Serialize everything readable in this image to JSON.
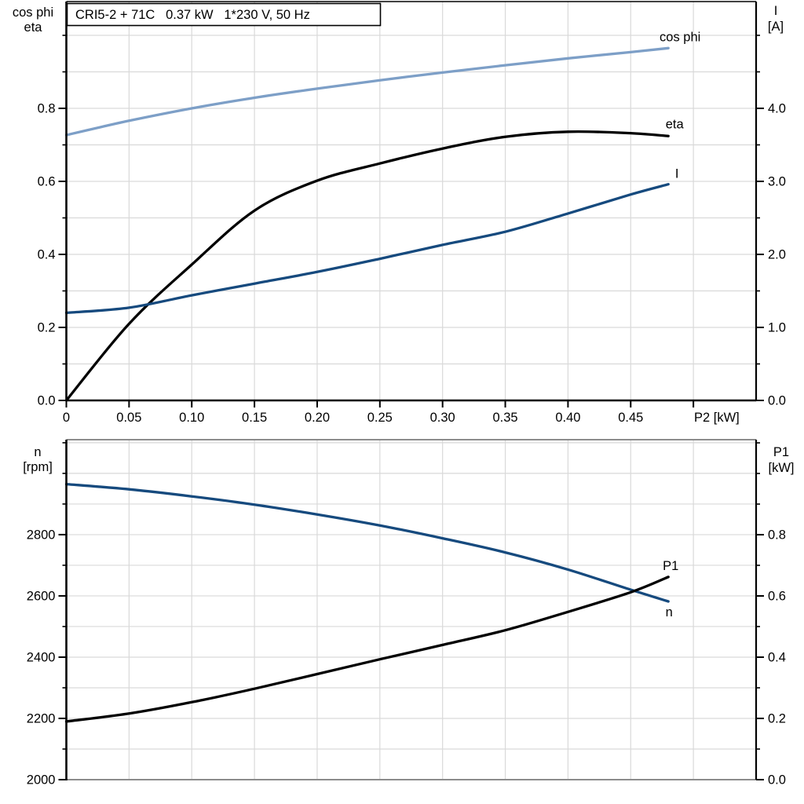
{
  "chart_data": [
    {
      "type": "line",
      "title": "CRI5-2 + 71C   0.37 kW   1*230 V, 50 Hz",
      "x_axis": {
        "label": "P2 [kW]",
        "range": [
          0,
          0.55
        ],
        "grid_step": 0.05,
        "ticks": [
          0,
          0.05,
          0.1,
          0.15,
          0.2,
          0.25,
          0.3,
          0.35,
          0.4,
          0.45,
          0.5
        ],
        "tick_labels": [
          "0",
          "0.05",
          "0.10",
          "0.15",
          "0.20",
          "0.25",
          "0.30",
          "0.35",
          "0.40",
          "0.45",
          ""
        ]
      },
      "y_left": {
        "label_lines": [
          "cos phi",
          "eta"
        ],
        "range": [
          0,
          1.0925
        ],
        "grid_step": 0.1,
        "minor_step": 0.1,
        "ticks": [
          0,
          0.2,
          0.4,
          0.6,
          0.8
        ],
        "tick_labels": [
          "0.0",
          "0.2",
          "0.4",
          "0.6",
          "0.8"
        ]
      },
      "y_right": {
        "label_lines": [
          "I",
          "[A]"
        ],
        "range": [
          0,
          5.4624
        ],
        "minor_step": 0.5,
        "ticks": [
          0,
          1,
          2,
          3,
          4
        ],
        "tick_labels": [
          "0.0",
          "1.0",
          "2.0",
          "3.0",
          "4.0"
        ]
      },
      "series": [
        {
          "name": "cos phi",
          "axis": "left",
          "color": "#7d9fc7",
          "x": [
            0,
            0.05,
            0.1,
            0.15,
            0.2,
            0.25,
            0.3,
            0.35,
            0.4,
            0.45,
            0.48
          ],
          "y": [
            0.727,
            0.766,
            0.8,
            0.829,
            0.854,
            0.877,
            0.898,
            0.918,
            0.937,
            0.954,
            0.965
          ],
          "label_offset": [
            15,
            -14
          ]
        },
        {
          "name": "eta",
          "axis": "left",
          "color": "#000000",
          "x": [
            0,
            0.05,
            0.1,
            0.15,
            0.2,
            0.25,
            0.3,
            0.35,
            0.4,
            0.45,
            0.48
          ],
          "y": [
            0.0,
            0.21,
            0.372,
            0.52,
            0.602,
            0.649,
            0.69,
            0.722,
            0.736,
            0.732,
            0.724
          ],
          "label_offset": [
            8,
            -15
          ]
        },
        {
          "name": "I",
          "axis": "right",
          "color": "#164a7e",
          "x": [
            0,
            0.05,
            0.1,
            0.15,
            0.2,
            0.25,
            0.3,
            0.35,
            0.4,
            0.45,
            0.48
          ],
          "y": [
            1.2,
            1.27,
            1.44,
            1.6,
            1.76,
            1.94,
            2.13,
            2.31,
            2.56,
            2.82,
            2.96
          ],
          "label_offset": [
            11,
            -13
          ]
        }
      ]
    },
    {
      "type": "line",
      "title": "",
      "x_axis": {
        "label": "",
        "range": [
          0,
          0.55
        ],
        "grid_step": 0.05,
        "ticks": [],
        "tick_labels": []
      },
      "y_left": {
        "label_lines": [
          "n",
          "[rpm]"
        ],
        "range": [
          2000,
          3110
        ],
        "grid_step": 100,
        "minor_step": 100,
        "ticks": [
          2000,
          2200,
          2400,
          2600,
          2800
        ],
        "tick_labels": [
          "2000",
          "2200",
          "2400",
          "2600",
          "2800"
        ]
      },
      "y_right": {
        "label_lines": [
          "P1",
          "[kW]"
        ],
        "range": [
          0,
          1.1103
        ],
        "minor_step": 0.1,
        "ticks": [
          0,
          0.2,
          0.4,
          0.6,
          0.8
        ],
        "tick_labels": [
          "0.0",
          "0.2",
          "0.4",
          "0.6",
          "0.8"
        ]
      },
      "series": [
        {
          "name": "n",
          "axis": "left",
          "color": "#164a7e",
          "x": [
            0,
            0.05,
            0.1,
            0.15,
            0.2,
            0.25,
            0.3,
            0.35,
            0.4,
            0.45,
            0.48
          ],
          "y": [
            2965,
            2948,
            2925,
            2898,
            2866,
            2830,
            2788,
            2742,
            2686,
            2620,
            2582
          ],
          "label_offset": [
            1,
            14
          ]
        },
        {
          "name": "P1",
          "axis": "right",
          "color": "#000000",
          "x": [
            0,
            0.05,
            0.1,
            0.15,
            0.2,
            0.25,
            0.3,
            0.35,
            0.4,
            0.45,
            0.48
          ],
          "y": [
            0.19,
            0.216,
            0.253,
            0.297,
            0.345,
            0.393,
            0.44,
            0.488,
            0.548,
            0.612,
            0.662
          ],
          "label_offset": [
            3,
            -14
          ]
        }
      ]
    }
  ],
  "colors": {
    "grid": "#d9d9d9",
    "frame_gray": "#8c8c8c",
    "axis_black": "#000000",
    "light_blue": "#7d9fc7",
    "dark_blue": "#164a7e"
  }
}
